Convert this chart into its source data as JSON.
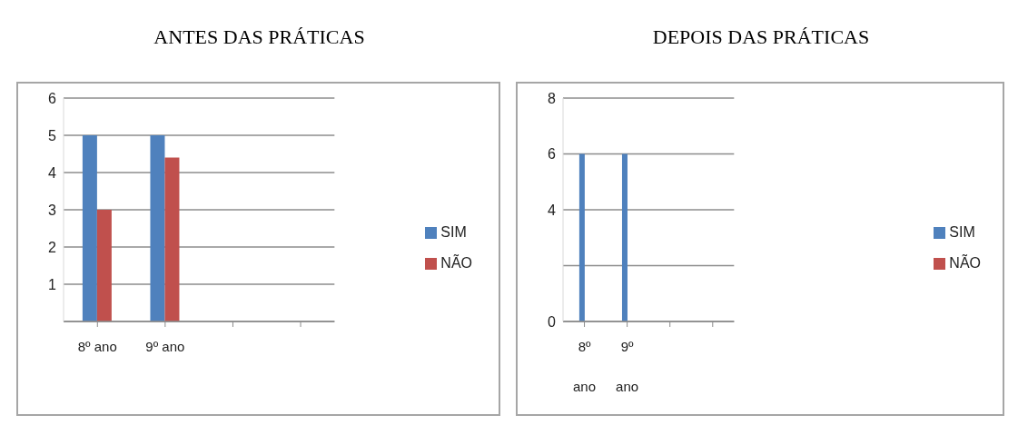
{
  "chart_data": [
    {
      "type": "bar",
      "title": "ANTES DAS PRÁTICAS",
      "categories": [
        "8º ano",
        "9º ano",
        null,
        null
      ],
      "series": [
        {
          "name": "SIM",
          "color": "#4f81bd",
          "values": [
            5,
            5,
            null,
            null
          ]
        },
        {
          "name": "NÃO",
          "color": "#c0504d",
          "values": [
            3,
            4.4,
            null,
            null
          ]
        }
      ],
      "ylim": [
        0,
        6
      ],
      "yticks": [
        {
          "value": 0,
          "label": null
        },
        1,
        2,
        3,
        4,
        5,
        6
      ],
      "grid": "y",
      "legend": "right"
    },
    {
      "type": "bar",
      "title": "DEPOIS DAS PRÁTICAS",
      "categories": [
        "8º ano",
        "9º ano",
        null,
        null
      ],
      "series": [
        {
          "name": "SIM",
          "color": "#4f81bd",
          "values": [
            6,
            6,
            null,
            null
          ]
        },
        {
          "name": "NÃO",
          "color": "#c0504d",
          "values": [
            null,
            null,
            null,
            null
          ]
        }
      ],
      "ylim": [
        0,
        8
      ],
      "yticks": [
        0,
        {
          "value": 2,
          "label": null
        },
        4,
        6,
        8
      ],
      "grid": "y",
      "legend": "right"
    }
  ]
}
